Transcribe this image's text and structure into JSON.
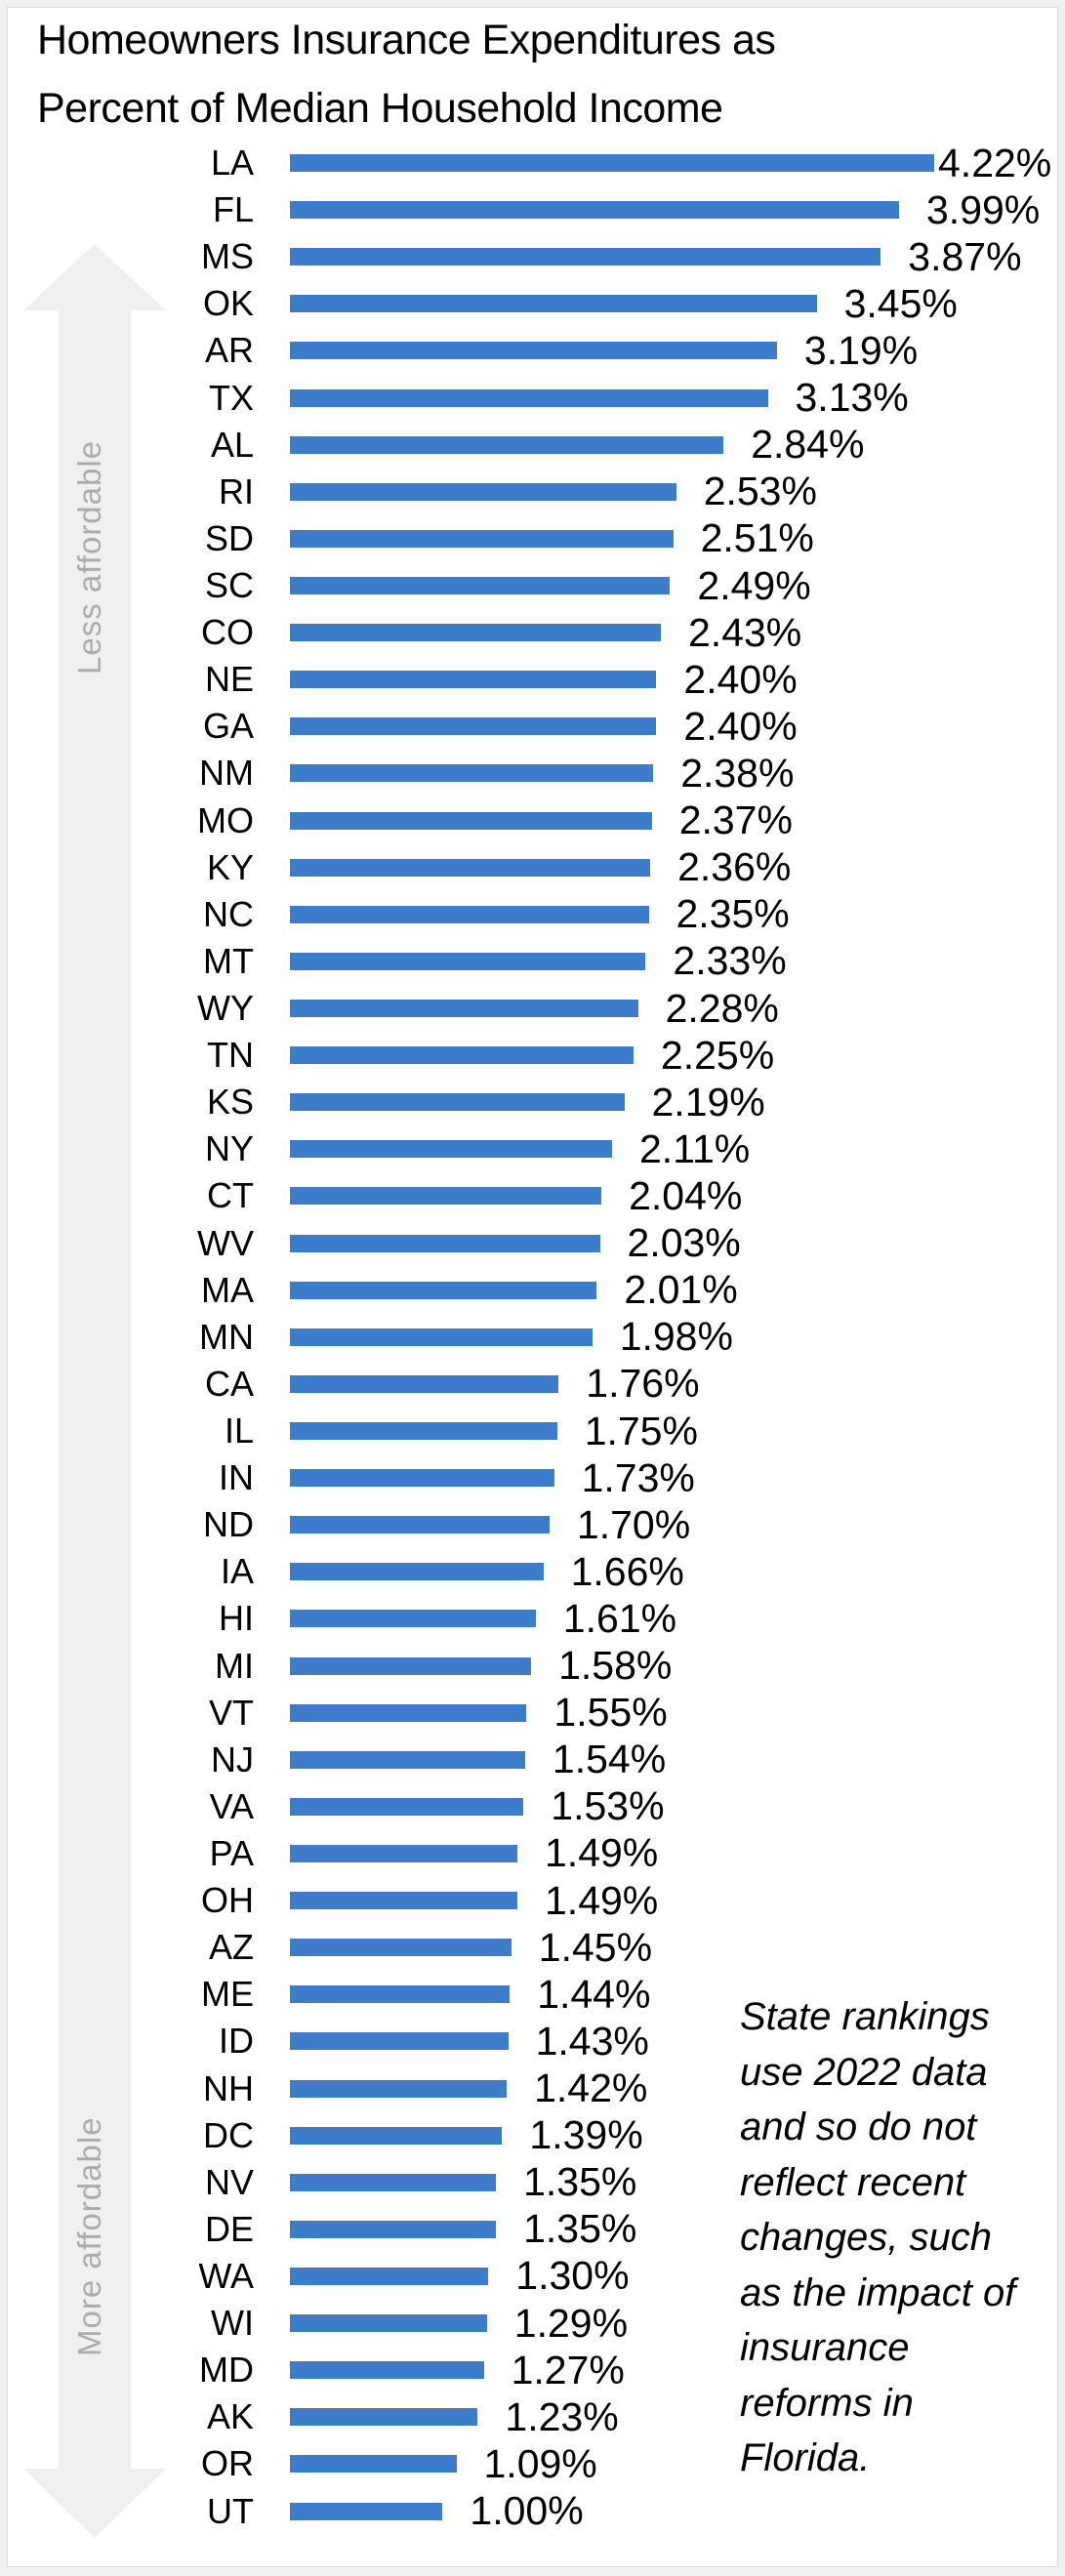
{
  "page": {
    "background_color": "#F0F0F1",
    "card_background": "#FFFFFF",
    "card_border_color": "#D9D9D9"
  },
  "chart_data": {
    "type": "bar",
    "orientation": "horizontal",
    "title": "Homeowners Insurance Expenditures as\nPercent of Median Household Income",
    "categories": [
      "LA",
      "FL",
      "MS",
      "OK",
      "AR",
      "TX",
      "AL",
      "RI",
      "SD",
      "SC",
      "CO",
      "NE",
      "GA",
      "NM",
      "MO",
      "KY",
      "NC",
      "MT",
      "WY",
      "TN",
      "KS",
      "NY",
      "CT",
      "WV",
      "MA",
      "MN",
      "CA",
      "IL",
      "IN",
      "ND",
      "IA",
      "HI",
      "MI",
      "VT",
      "NJ",
      "VA",
      "PA",
      "OH",
      "AZ",
      "ME",
      "ID",
      "NH",
      "DC",
      "NV",
      "DE",
      "WA",
      "WI",
      "MD",
      "AK",
      "OR",
      "UT"
    ],
    "values": [
      4.22,
      3.99,
      3.87,
      3.45,
      3.19,
      3.13,
      2.84,
      2.53,
      2.51,
      2.49,
      2.43,
      2.4,
      2.4,
      2.38,
      2.37,
      2.36,
      2.35,
      2.33,
      2.28,
      2.25,
      2.19,
      2.11,
      2.04,
      2.03,
      2.01,
      1.98,
      1.76,
      1.75,
      1.73,
      1.7,
      1.66,
      1.61,
      1.58,
      1.55,
      1.54,
      1.53,
      1.49,
      1.49,
      1.45,
      1.44,
      1.43,
      1.42,
      1.39,
      1.35,
      1.35,
      1.3,
      1.29,
      1.27,
      1.23,
      1.09,
      1.0
    ],
    "value_decimals": 2,
    "value_suffix": "%",
    "xlim": [
      0,
      4.22
    ],
    "bar_color": "#3D7CC8",
    "grid": false,
    "legend": false,
    "axis_annotations": {
      "top_arrow_label": "Less affordable",
      "bottom_arrow_label": "More affordable",
      "arrow_color": "#F0F0F0",
      "arrow_label_color": "#ABABAB"
    },
    "note": "State rankings\nuse 2022 data\nand so do not\nreflect recent\nchanges, such\nas the impact of\ninsurance\nreforms in\nFlorida."
  }
}
